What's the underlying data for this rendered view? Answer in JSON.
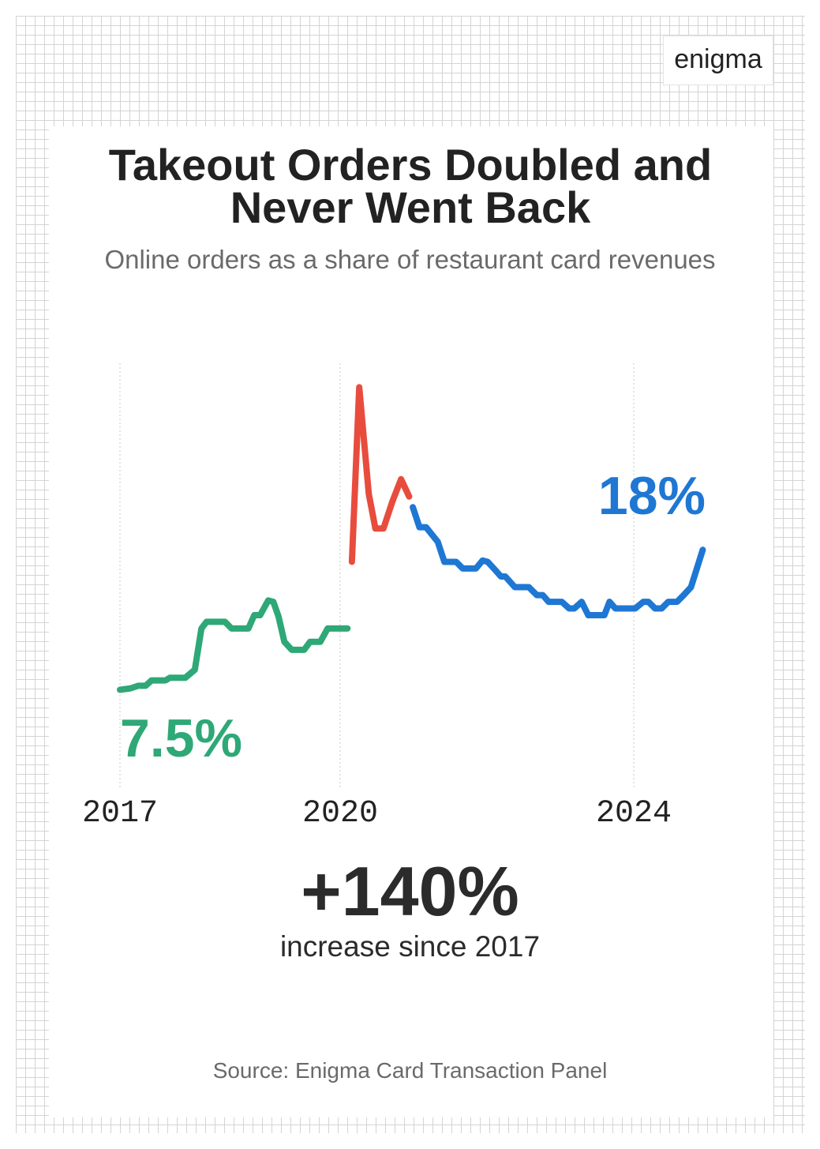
{
  "brand": "enigma",
  "chart_data": {
    "type": "line",
    "title": "Takeout Orders Doubled and Never Went Back",
    "subtitle": "Online orders as a share of restaurant card revenues",
    "xlim": [
      2017,
      2025
    ],
    "xticks": [
      2017,
      2020,
      2024
    ],
    "ylim": [
      0,
      32
    ],
    "grid": true,
    "series": [
      {
        "color": "#2ea876",
        "x": [
          2017.0,
          2017.14,
          2017.25,
          2017.35,
          2017.43,
          2017.62,
          2017.68,
          2017.89,
          2018.02,
          2018.11,
          2018.18,
          2018.43,
          2018.52,
          2018.75,
          2018.83,
          2018.91,
          2019.02,
          2019.09,
          2019.16,
          2019.24,
          2019.34,
          2019.51,
          2019.59,
          2019.73,
          2019.83,
          2020.1
        ],
        "values": [
          7.5,
          7.6,
          7.8,
          7.8,
          8.2,
          8.2,
          8.4,
          8.4,
          9.0,
          12.1,
          12.6,
          12.6,
          12.1,
          12.1,
          13.1,
          13.1,
          14.2,
          14.1,
          13.0,
          11.1,
          10.5,
          10.5,
          11.1,
          11.1,
          12.1,
          12.1
        ]
      },
      {
        "color": "#e84c3d",
        "x": [
          2020.16,
          2020.26,
          2020.39,
          2020.48,
          2020.59,
          2020.71,
          2020.83,
          2020.94
        ],
        "values": [
          17.1,
          30.2,
          22.2,
          19.6,
          19.6,
          21.6,
          23.3,
          22.0
        ]
      },
      {
        "color": "#1f77d4",
        "x": [
          2020.99,
          2021.08,
          2021.17,
          2021.33,
          2021.42,
          2021.58,
          2021.67,
          2021.85,
          2021.94,
          2022.01,
          2022.11,
          2022.19,
          2022.25,
          2022.38,
          2022.57,
          2022.68,
          2022.76,
          2022.84,
          2023.02,
          2023.12,
          2023.19,
          2023.29,
          2023.38,
          2023.6,
          2023.67,
          2023.75,
          2024.02,
          2024.13,
          2024.2,
          2024.29,
          2024.38,
          2024.47,
          2024.59,
          2024.68,
          2024.78,
          2024.94
        ],
        "values": [
          21.2,
          19.7,
          19.7,
          18.6,
          17.1,
          17.1,
          16.6,
          16.6,
          17.2,
          17.1,
          16.5,
          16.0,
          16.0,
          15.2,
          15.2,
          14.6,
          14.6,
          14.1,
          14.1,
          13.6,
          13.6,
          14.1,
          13.1,
          13.1,
          14.1,
          13.6,
          13.6,
          14.1,
          14.1,
          13.6,
          13.6,
          14.1,
          14.1,
          14.6,
          15.2,
          18
        ]
      }
    ],
    "start_label": "7.5%",
    "end_label": "18%",
    "callout": {
      "text": "+140%",
      "caption": "increase since 2017"
    },
    "source": "Source: Enigma Card Transaction Panel"
  }
}
